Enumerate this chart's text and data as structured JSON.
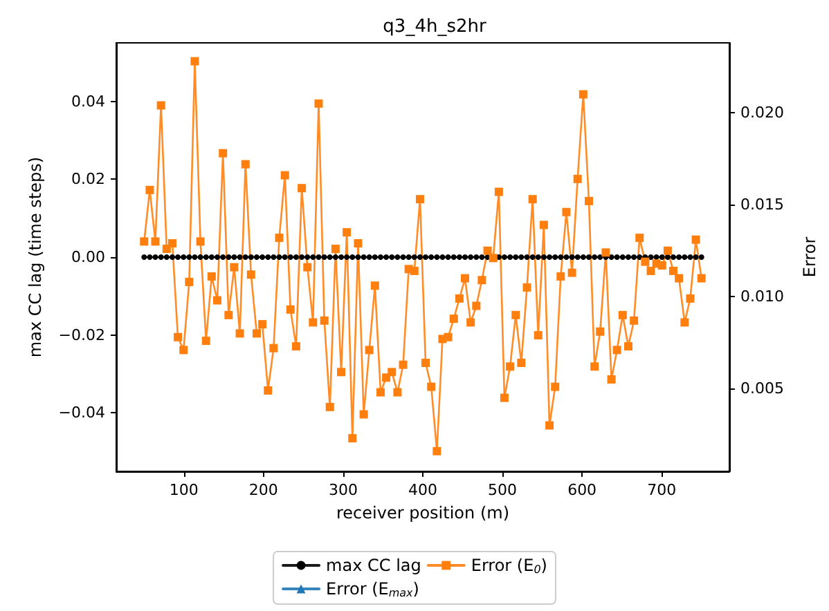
{
  "chart_data": {
    "type": "line",
    "title": "q3_4h_s2hr",
    "xlabel": "receiver position (m)",
    "ylabel": "max CC lag (time steps)",
    "y2label": "Error",
    "x": [
      50,
      57.1,
      64.1,
      71.2,
      78.3,
      85.4,
      92.4,
      99.5,
      106.6,
      113.6,
      120.7,
      127.8,
      134.8,
      141.9,
      149,
      156.1,
      163.1,
      170.2,
      177.3,
      184.3,
      191.4,
      198.5,
      205.6,
      212.6,
      219.7,
      226.8,
      233.8,
      240.9,
      248,
      255.1,
      262.1,
      269.2,
      276.3,
      283.3,
      290.4,
      297.5,
      304.5,
      311.6,
      318.7,
      325.8,
      332.8,
      339.9,
      347,
      354,
      361.1,
      368.2,
      375.3,
      382.3,
      389.4,
      396.5,
      403.5,
      410.6,
      417.7,
      424.7,
      431.8,
      438.9,
      446,
      453,
      460.1,
      467.2,
      474.2,
      481.3,
      488.4,
      495.5,
      502.5,
      509.6,
      516.7,
      523.7,
      530.8,
      537.9,
      544.9,
      552,
      559.1,
      566.2,
      573.2,
      580.3,
      587.4,
      594.4,
      601.5,
      608.6,
      615.7,
      622.7,
      629.8,
      636.9,
      643.9,
      651,
      658.1,
      665.2,
      672.2,
      679.3,
      686.4,
      693.4,
      700.5,
      707.6,
      714.6,
      721.7,
      728.8,
      735.9,
      742.9,
      750
    ],
    "series": [
      {
        "name": "max CC lag",
        "color": "#000000",
        "marker": "circle",
        "values": [
          0,
          0,
          0,
          0,
          0,
          0,
          0,
          0,
          0,
          0,
          0,
          0,
          0,
          0,
          0,
          0,
          0,
          0,
          0,
          0,
          0,
          0,
          0,
          0,
          0,
          0,
          0,
          0,
          0,
          0,
          0,
          0,
          0,
          0,
          0,
          0,
          0,
          0,
          0,
          0,
          0,
          0,
          0,
          0,
          0,
          0,
          0,
          0,
          0,
          0,
          0,
          0,
          0,
          0,
          0,
          0,
          0,
          0,
          0,
          0,
          0,
          0,
          0,
          0,
          0,
          0,
          0,
          0,
          0,
          0,
          0,
          0,
          0,
          0,
          0,
          0,
          0,
          0,
          0,
          0,
          0,
          0,
          0,
          0,
          0,
          0,
          0,
          0,
          0,
          0,
          0,
          0,
          0,
          0,
          0,
          0,
          0,
          0,
          0,
          0
        ]
      },
      {
        "name": "Error (E$_{max}$)",
        "color": "#1f77b4",
        "marker": "triangle",
        "axis": "y2",
        "values": [
          null,
          null,
          null,
          null,
          null,
          null,
          null,
          null,
          null,
          null,
          null,
          null,
          null,
          null,
          null,
          null,
          null,
          null,
          null,
          null,
          null,
          null,
          null,
          null,
          null,
          null,
          null,
          null,
          null,
          null,
          null,
          null,
          null,
          null,
          null,
          null,
          null,
          null,
          null,
          null,
          null,
          null,
          null,
          null,
          null,
          null,
          null,
          null,
          null,
          null,
          null,
          null,
          null,
          null,
          null,
          null,
          null,
          null,
          null,
          null,
          null,
          null,
          null,
          null,
          null,
          null,
          null,
          null,
          null,
          null,
          null,
          null,
          null,
          null,
          null,
          null,
          null,
          null,
          null,
          null,
          null,
          null,
          null,
          null,
          null,
          null,
          null,
          null,
          null,
          null,
          null,
          null,
          null,
          null,
          null,
          null,
          null,
          null,
          null,
          null
        ]
      },
      {
        "name": "Error (E$_{0}$)",
        "color": "#ff7f0e",
        "marker": "square",
        "axis": "y2",
        "values": [
          0.013,
          0.0158,
          0.013,
          0.0204,
          0.0126,
          0.0129,
          0.0078,
          0.0071,
          0.0108,
          0.0228,
          0.013,
          0.0076,
          0.0111,
          0.0098,
          0.0178,
          0.009,
          0.0116,
          0.008,
          0.0172,
          0.0112,
          0.008,
          0.0085,
          0.0049,
          0.0072,
          0.0132,
          0.0166,
          0.0093,
          0.0073,
          0.0159,
          0.0116,
          0.0086,
          0.0205,
          0.0087,
          0.004,
          0.0126,
          0.0059,
          0.0135,
          0.0023,
          0.0129,
          0.0036,
          0.0071,
          0.0106,
          0.0048,
          0.0056,
          0.0059,
          0.0048,
          0.0063,
          0.0115,
          0.0114,
          0.0153,
          0.0064,
          0.0051,
          0.0016,
          0.0077,
          0.0078,
          0.0088,
          0.0099,
          0.011,
          0.0086,
          0.0095,
          0.0109,
          0.0125,
          0.0121,
          0.0157,
          0.0045,
          0.0062,
          0.009,
          0.0064,
          0.0105,
          0.0153,
          0.0079,
          0.0139,
          0.003,
          0.0051,
          0.0111,
          0.0146,
          0.0113,
          0.0164,
          0.021,
          0.0152,
          0.0062,
          0.0081,
          0.0124,
          0.0055,
          0.0071,
          0.009,
          0.0073,
          0.0087,
          0.0132,
          0.0119,
          0.0114,
          0.0118,
          0.0117,
          0.0125,
          0.0114,
          0.011,
          0.0086,
          0.0099,
          0.0131,
          0.011
        ]
      }
    ],
    "xlim": [
      15,
      785
    ],
    "xticks": [
      100,
      200,
      300,
      400,
      500,
      600,
      700
    ],
    "ylim": [
      -0.055,
      0.055
    ],
    "yticks": [
      {
        "value": -0.04,
        "label": "−0.04"
      },
      {
        "value": -0.02,
        "label": "−0.02"
      },
      {
        "value": 0,
        "label": "0.00"
      },
      {
        "value": 0.02,
        "label": "0.02"
      },
      {
        "value": 0.04,
        "label": "0.04"
      }
    ],
    "y2lim": [
      0.0005,
      0.0238
    ],
    "y2ticks": [
      {
        "value": 0.005,
        "label": "0.005"
      },
      {
        "value": 0.01,
        "label": "0.010"
      },
      {
        "value": 0.015,
        "label": "0.015"
      },
      {
        "value": 0.02,
        "label": "0.020"
      }
    ],
    "legend": "bottom",
    "grid": false
  }
}
